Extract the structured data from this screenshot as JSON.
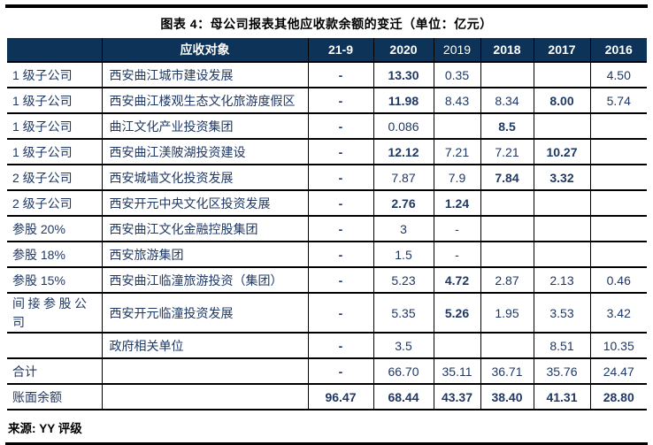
{
  "title": "图表 4：母公司报表其他应收款余额的变迁（单位：亿元）",
  "source": "来源: YY 评级",
  "colors": {
    "header_bg": "#0d3458",
    "body_text": "#1f3864",
    "rule": "#000000",
    "header_text": "#ffffff"
  },
  "table": {
    "columns": [
      "",
      "应收对象",
      "21-9",
      "2020",
      "2019",
      "2018",
      "2017",
      "2016"
    ],
    "rows": [
      {
        "type": "1 级子公司",
        "name": "西安曲江城市建设发展",
        "values": [
          "-",
          "13.30",
          "0.35",
          "",
          "",
          "4.50"
        ],
        "bold": [
          0,
          1
        ]
      },
      {
        "type": "1 级子公司",
        "name": "西安曲江楼观生态文化旅游度假区",
        "values": [
          "-",
          "11.98",
          "8.43",
          "8.34",
          "8.00",
          "5.74"
        ],
        "bold": [
          0,
          1,
          4
        ]
      },
      {
        "type": "1 级子公司",
        "name": "曲江文化产业投资集团",
        "values": [
          "-",
          "0.086",
          "",
          "8.5",
          "",
          ""
        ],
        "bold": [
          0,
          3
        ]
      },
      {
        "type": "1 级子公司",
        "name": "西安曲江渼陂湖投资建设",
        "values": [
          "-",
          "12.12",
          "7.21",
          "7.21",
          "10.27",
          ""
        ],
        "bold": [
          0,
          1,
          4
        ]
      },
      {
        "type": "2 级子公司",
        "name": "西安城墙文化投资发展",
        "values": [
          "-",
          "7.87",
          "7.9",
          "7.84",
          "3.32",
          ""
        ],
        "bold": [
          0,
          3,
          4
        ]
      },
      {
        "type": "2 级子公司",
        "name": "西安开元中央文化区投资发展",
        "values": [
          "-",
          "2.76",
          "1.24",
          "",
          "",
          ""
        ],
        "bold": [
          0,
          1,
          2
        ]
      },
      {
        "type": "参股 20%",
        "name": "西安曲江文化金融控股集团",
        "values": [
          "-",
          "3",
          "-",
          "",
          "",
          ""
        ],
        "bold": [
          0
        ]
      },
      {
        "type": "参股 18%",
        "name": "西安旅游集团",
        "values": [
          "-",
          "1.5",
          "-",
          "",
          "",
          ""
        ],
        "bold": [
          0
        ]
      },
      {
        "type": "参股 15%",
        "name": "西安曲江临潼旅游投资（集团）",
        "values": [
          "-",
          "5.23",
          "4.72",
          "2.87",
          "2.13",
          "0.46"
        ],
        "bold": [
          0,
          2
        ]
      },
      {
        "type": "间接参股公司",
        "name": "西安开元临潼投资发展",
        "values": [
          "-",
          "5.35",
          "5.26",
          "1.95",
          "3.53",
          "3.42"
        ],
        "bold": [
          0,
          2
        ],
        "tall": true
      },
      {
        "type": "",
        "name": "政府相关单位",
        "values": [
          "-",
          "3.5",
          "",
          "",
          "8.51",
          "10.35"
        ],
        "bold": [
          0
        ]
      },
      {
        "type": "合计",
        "name": "",
        "values": [
          "-",
          "66.70",
          "35.11",
          "36.71",
          "35.76",
          "24.47"
        ],
        "bold": [
          0
        ]
      },
      {
        "type": "账面余额",
        "name": "",
        "values": [
          "96.47",
          "68.44",
          "43.37",
          "38.40",
          "41.31",
          "28.80"
        ],
        "bold": [
          0,
          1,
          2,
          3,
          4,
          5
        ]
      }
    ]
  }
}
